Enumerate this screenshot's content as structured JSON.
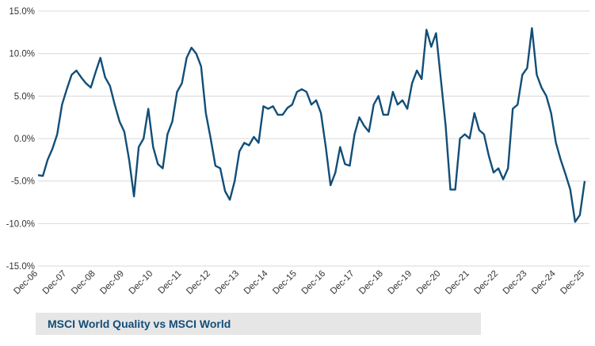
{
  "chart_data": {
    "type": "line",
    "categories": [
      "Dec-06",
      null,
      null,
      null,
      null,
      null,
      "Dec-07",
      null,
      null,
      null,
      null,
      null,
      "Dec-08",
      null,
      null,
      null,
      null,
      null,
      "Dec-09",
      null,
      null,
      null,
      null,
      null,
      "Dec-10",
      null,
      null,
      null,
      null,
      null,
      "Dec-11",
      null,
      null,
      null,
      null,
      null,
      "Dec-12",
      null,
      null,
      null,
      null,
      null,
      "Dec-13",
      null,
      null,
      null,
      null,
      null,
      "Dec-14",
      null,
      null,
      null,
      null,
      null,
      "Dec-15",
      null,
      null,
      null,
      null,
      null,
      "Dec-16",
      null,
      null,
      null,
      null,
      null,
      "Dec-17",
      null,
      null,
      null,
      null,
      null,
      "Dec-18",
      null,
      null,
      null,
      null,
      null,
      "Dec-19",
      null,
      null,
      null,
      null,
      null,
      "Dec-20",
      null,
      null,
      null,
      null,
      null,
      "Dec-21",
      null,
      null,
      null,
      null,
      null,
      "Dec-22",
      null,
      null,
      null,
      null,
      null,
      "Dec-23",
      null,
      null,
      null,
      null,
      null,
      "Dec-24",
      null,
      null,
      null,
      null,
      null,
      "Dec-25"
    ],
    "series": [
      {
        "name": "MSCI World Quality vs MSCI World",
        "color": "#124e78",
        "values": [
          -4.3,
          -4.4,
          -2.5,
          -1.2,
          0.5,
          4.0,
          5.8,
          7.5,
          8.0,
          7.2,
          6.5,
          6.0,
          7.8,
          9.5,
          7.2,
          6.2,
          4.0,
          2.0,
          0.8,
          -2.5,
          -6.8,
          -1.0,
          0.0,
          3.5,
          -1.0,
          -3.0,
          -3.5,
          0.5,
          2.0,
          5.5,
          6.5,
          9.5,
          10.7,
          10.0,
          8.5,
          3.0,
          0.0,
          -3.2,
          -3.5,
          -6.2,
          -7.2,
          -5.0,
          -1.5,
          -0.5,
          -0.8,
          0.2,
          -0.5,
          3.8,
          3.5,
          3.8,
          2.8,
          2.8,
          3.6,
          4.0,
          5.5,
          5.8,
          5.5,
          4.0,
          4.5,
          3.0,
          -1.0,
          -5.5,
          -4.0,
          -1.0,
          -3.0,
          -3.2,
          0.5,
          2.5,
          1.5,
          0.8,
          4.0,
          5.0,
          2.8,
          2.8,
          5.5,
          4.0,
          4.5,
          3.5,
          6.5,
          8.0,
          7.0,
          12.8,
          10.8,
          12.4,
          7.0,
          1.5,
          -6.0,
          -6.0,
          0.0,
          0.5,
          0.0,
          3.0,
          1.0,
          0.5,
          -2.0,
          -4.0,
          -3.5,
          -4.8,
          -3.5,
          3.5,
          4.0,
          7.5,
          8.3,
          13.0,
          7.5,
          6.0,
          5.0,
          3.0,
          -0.5,
          -2.5,
          -4.2,
          -6.0,
          -9.8,
          -9.0,
          -5.0
        ]
      }
    ],
    "ylim": [
      -15,
      15
    ],
    "yticks": [
      {
        "value": -15,
        "label": "-15.0%"
      },
      {
        "value": -10,
        "label": "-10.0%"
      },
      {
        "value": -5,
        "label": "-5.0%"
      },
      {
        "value": 0,
        "label": "0.0%"
      },
      {
        "value": 5,
        "label": "5.0%"
      },
      {
        "value": 10,
        "label": "10.0%"
      },
      {
        "value": 15,
        "label": "15.0%"
      }
    ],
    "grid": true
  }
}
